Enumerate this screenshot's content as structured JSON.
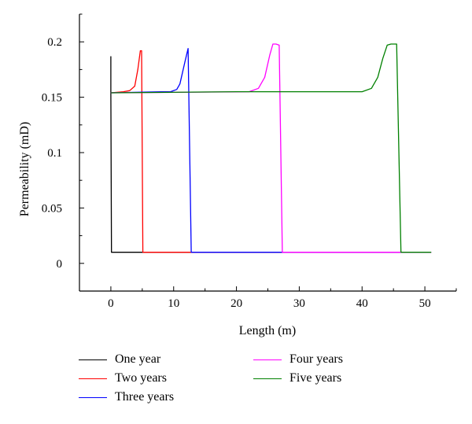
{
  "chart_data": {
    "type": "line",
    "title": "",
    "xlabel": "Length (m)",
    "ylabel": "Permeability (mD)",
    "xlim": [
      -5,
      55
    ],
    "ylim": [
      -0.025,
      0.225
    ],
    "xticks": [
      0,
      10,
      20,
      30,
      40,
      50
    ],
    "xtick_labels": [
      "0",
      "10",
      "20",
      "30",
      "40",
      "50"
    ],
    "yticks": [
      0,
      0.05,
      0.1,
      0.15,
      0.2
    ],
    "ytick_labels": [
      "0",
      "0.05",
      "0.1",
      "0.15",
      "0.2"
    ],
    "grid": false,
    "legend_position": "bottom",
    "series": [
      {
        "name": "One year",
        "color": "#000000",
        "x": [
          0,
          0,
          0.1,
          51
        ],
        "y": [
          0.187,
          0.155,
          0.01,
          0.01
        ]
      },
      {
        "name": "Two years",
        "color": "#ff0000",
        "x": [
          0,
          2,
          3,
          3.8,
          4.3,
          4.7,
          4.9,
          5.1,
          5.3,
          51
        ],
        "y": [
          0.154,
          0.155,
          0.156,
          0.16,
          0.175,
          0.192,
          0.192,
          0.01,
          0.01,
          0.01
        ]
      },
      {
        "name": "Three years",
        "color": "#0000ff",
        "x": [
          0,
          8,
          9.5,
          10.5,
          11,
          11.8,
          12.3,
          12.8,
          13,
          51
        ],
        "y": [
          0.154,
          0.155,
          0.155,
          0.157,
          0.162,
          0.182,
          0.194,
          0.01,
          0.01,
          0.01
        ]
      },
      {
        "name": "Four years",
        "color": "#ff00ff",
        "x": [
          0,
          22,
          23.5,
          24.5,
          25.3,
          25.8,
          26.3,
          26.8,
          27.3,
          51
        ],
        "y": [
          0.154,
          0.155,
          0.158,
          0.168,
          0.188,
          0.198,
          0.198,
          0.197,
          0.01,
          0.01
        ]
      },
      {
        "name": "Five years",
        "color": "#008000",
        "x": [
          0,
          20,
          40,
          41.5,
          42.5,
          43.3,
          44,
          44.6,
          45.5,
          46.2,
          51
        ],
        "y": [
          0.154,
          0.155,
          0.155,
          0.158,
          0.168,
          0.185,
          0.197,
          0.198,
          0.198,
          0.01,
          0.01
        ]
      }
    ]
  }
}
